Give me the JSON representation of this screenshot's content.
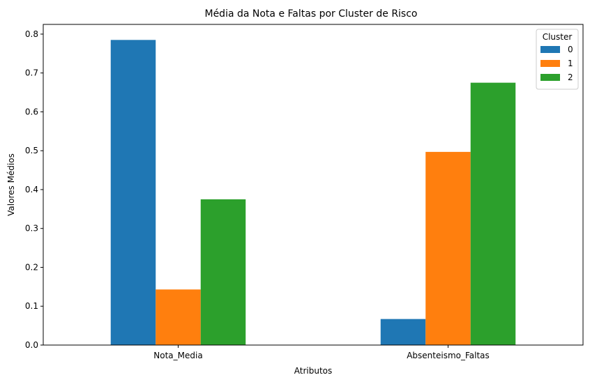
{
  "chart_data": {
    "type": "bar",
    "title": "Média da Nota e Faltas por Cluster de Risco",
    "xlabel": "Atributos",
    "ylabel": "Valores Médios",
    "categories": [
      "Nota_Media",
      "Absenteismo_Faltas"
    ],
    "series": [
      {
        "name": "0",
        "values": [
          0.785,
          0.067
        ],
        "color": "#1f77b4"
      },
      {
        "name": "1",
        "values": [
          0.143,
          0.497
        ],
        "color": "#ff7f0e"
      },
      {
        "name": "2",
        "values": [
          0.375,
          0.675
        ],
        "color": "#2ca02c"
      }
    ],
    "ylim": [
      0,
      0.825
    ],
    "yticks": [
      "0.0",
      "0.1",
      "0.2",
      "0.3",
      "0.4",
      "0.5",
      "0.6",
      "0.7",
      "0.8"
    ],
    "legend": {
      "title": "Cluster",
      "placement": "top-right"
    },
    "grid": false
  }
}
